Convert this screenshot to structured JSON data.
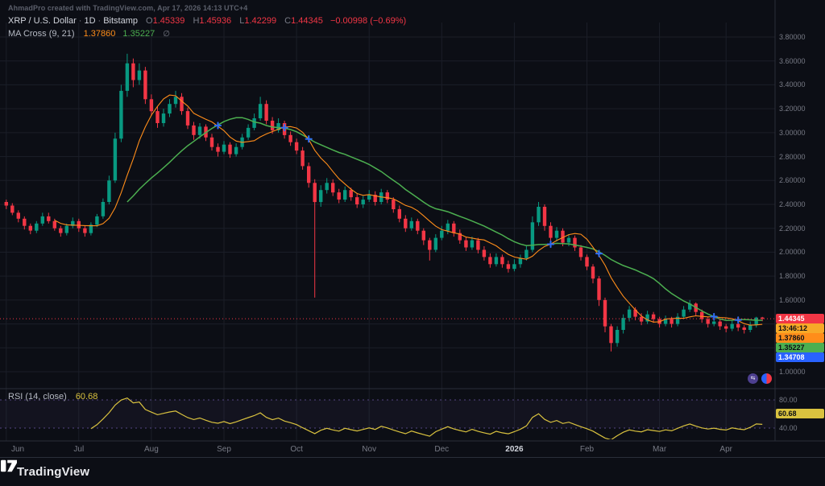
{
  "watermark": "AhmadPro created with TradingView.com, Apr 17, 2026 14:13 UTC+4",
  "legend": {
    "symbol": "XRP / U.S. Dollar",
    "separator": "·",
    "interval": "1D",
    "exchange": "Bitstamp",
    "ohlc": {
      "o_label": "O",
      "o": "1.45339",
      "h_label": "H",
      "h": "1.45936",
      "l_label": "L",
      "l": "1.42299",
      "c_label": "C",
      "c": "1.44345",
      "change": "−0.00998 (−0.69%)"
    },
    "ma": {
      "title": "MA Cross (9, 21)",
      "fast_value": "1.37860",
      "slow_value": "1.35227",
      "options_icon": "∅"
    },
    "rsi": {
      "title": "RSI (14, close)",
      "value": "60.68"
    }
  },
  "price_scale": {
    "ticks": [
      "3.80000",
      "3.60000",
      "3.40000",
      "3.20000",
      "3.00000",
      "2.80000",
      "2.60000",
      "2.40000",
      "2.20000",
      "2.00000",
      "1.80000",
      "1.60000",
      "1.40000",
      "1.20000",
      "1.00000"
    ],
    "badges": [
      {
        "name": "last-price-label",
        "text": "1.44345",
        "bg": "#f23645",
        "fg": "#ffffff"
      },
      {
        "name": "countdown-label",
        "text": "13:46:12",
        "bg": "#f7a928",
        "fg": "#0c0e15"
      },
      {
        "name": "ma-fast-label",
        "text": "1.37860",
        "bg": "#ff8d1a",
        "fg": "#0c0e15"
      },
      {
        "name": "ma-slow-label",
        "text": "1.35227",
        "bg": "#4caf50",
        "fg": "#0c0e15"
      },
      {
        "name": "cross-value-label",
        "text": "1.34708",
        "bg": "#2962ff",
        "fg": "#ffffff"
      }
    ]
  },
  "rsi_scale": {
    "ticks": [
      {
        "text": "80.00",
        "value": 80
      },
      {
        "text": "40.00",
        "value": 40
      }
    ],
    "badge": {
      "text": "60.68",
      "bg": "#d9c23f",
      "fg": "#0c0e15",
      "value": 60.68
    }
  },
  "time_scale": {
    "labels": [
      {
        "text": "Jun",
        "index": 0,
        "highlight": false
      },
      {
        "text": "Jul",
        "index": 12,
        "highlight": false
      },
      {
        "text": "Aug",
        "index": 24,
        "highlight": false
      },
      {
        "text": "Sep",
        "index": 36,
        "highlight": false
      },
      {
        "text": "Oct",
        "index": 48,
        "highlight": false
      },
      {
        "text": "Nov",
        "index": 60,
        "highlight": false
      },
      {
        "text": "Dec",
        "index": 72,
        "highlight": false
      },
      {
        "text": "2026",
        "index": 84,
        "highlight": true
      },
      {
        "text": "Feb",
        "index": 96,
        "highlight": false
      },
      {
        "text": "Mar",
        "index": 108,
        "highlight": false
      },
      {
        "text": "Apr",
        "index": 119,
        "highlight": false
      }
    ]
  },
  "footer": {
    "brand": "TradingView"
  },
  "colors": {
    "background": "#0c0e15",
    "up": "#089981",
    "down": "#f23645",
    "grid": "#1b1e28",
    "separator": "#2a2e39",
    "axis_text": "#787b86",
    "title_text": "#d1d4dc",
    "ma_fast": "#ff8d1a",
    "ma_slow": "#4caf50",
    "cross": "#2f6df6",
    "rsi": "#d9c23f",
    "rsi_level": "#67539f",
    "price_line": "#f23645"
  },
  "chart_data": {
    "type": "candlestick",
    "title": "XRP / U.S. Dollar · 1D · Bitstamp",
    "ylim": [
      1.0,
      3.8
    ],
    "price_step": 0.2,
    "last_price": 1.44345,
    "countdown": "13:46:12",
    "indicators": [
      {
        "type": "ma_cross",
        "fast_period": 9,
        "slow_period": 21,
        "fast_last": 1.3786,
        "slow_last": 1.35227,
        "cross_last": 1.34708
      },
      {
        "type": "rsi",
        "period": 14,
        "source": "close",
        "last": 60.68,
        "upper_level": 80,
        "lower_level": 40
      }
    ],
    "candles": [
      [
        2.42,
        2.44,
        2.36,
        2.39
      ],
      [
        2.39,
        2.41,
        2.31,
        2.33
      ],
      [
        2.33,
        2.35,
        2.25,
        2.28
      ],
      [
        2.28,
        2.3,
        2.19,
        2.22
      ],
      [
        2.22,
        2.24,
        2.15,
        2.18
      ],
      [
        2.18,
        2.26,
        2.16,
        2.24
      ],
      [
        2.24,
        2.33,
        2.22,
        2.3
      ],
      [
        2.3,
        2.33,
        2.24,
        2.26
      ],
      [
        2.26,
        2.28,
        2.18,
        2.2
      ],
      [
        2.2,
        2.22,
        2.13,
        2.16
      ],
      [
        2.16,
        2.24,
        2.14,
        2.22
      ],
      [
        2.22,
        2.29,
        2.2,
        2.26
      ],
      [
        2.26,
        2.28,
        2.17,
        2.2
      ],
      [
        2.2,
        2.22,
        2.13,
        2.16
      ],
      [
        2.16,
        2.25,
        2.14,
        2.23
      ],
      [
        2.23,
        2.32,
        2.21,
        2.3
      ],
      [
        2.3,
        2.45,
        2.28,
        2.42
      ],
      [
        2.42,
        2.64,
        2.4,
        2.6
      ],
      [
        2.6,
        3.0,
        2.58,
        2.95
      ],
      [
        2.95,
        3.4,
        2.92,
        3.35
      ],
      [
        3.35,
        3.66,
        3.3,
        3.58
      ],
      [
        3.58,
        3.62,
        3.38,
        3.44
      ],
      [
        3.44,
        3.58,
        3.4,
        3.52
      ],
      [
        3.52,
        3.55,
        3.24,
        3.28
      ],
      [
        3.28,
        3.32,
        3.14,
        3.18
      ],
      [
        3.18,
        3.22,
        3.04,
        3.08
      ],
      [
        3.08,
        3.2,
        3.05,
        3.16
      ],
      [
        3.16,
        3.28,
        3.13,
        3.24
      ],
      [
        3.24,
        3.35,
        3.21,
        3.3
      ],
      [
        3.3,
        3.33,
        3.15,
        3.18
      ],
      [
        3.18,
        3.21,
        3.03,
        3.06
      ],
      [
        3.06,
        3.09,
        2.94,
        2.98
      ],
      [
        2.98,
        3.08,
        2.95,
        3.05
      ],
      [
        3.05,
        3.07,
        2.93,
        2.96
      ],
      [
        2.96,
        2.99,
        2.85,
        2.88
      ],
      [
        2.88,
        2.91,
        2.8,
        2.84
      ],
      [
        2.84,
        2.93,
        2.82,
        2.9
      ],
      [
        2.9,
        2.92,
        2.79,
        2.82
      ],
      [
        2.82,
        2.91,
        2.8,
        2.88
      ],
      [
        2.88,
        2.99,
        2.86,
        2.96
      ],
      [
        2.96,
        3.07,
        2.94,
        3.04
      ],
      [
        3.04,
        3.16,
        3.02,
        3.12
      ],
      [
        3.12,
        3.3,
        3.1,
        3.24
      ],
      [
        3.24,
        3.27,
        3.07,
        3.1
      ],
      [
        3.1,
        3.13,
        2.99,
        3.02
      ],
      [
        3.02,
        3.12,
        3.0,
        3.08
      ],
      [
        3.08,
        3.1,
        2.95,
        2.98
      ],
      [
        2.98,
        3.01,
        2.89,
        2.92
      ],
      [
        2.92,
        2.95,
        2.82,
        2.85
      ],
      [
        2.85,
        2.88,
        2.69,
        2.72
      ],
      [
        2.72,
        2.75,
        2.54,
        2.58
      ],
      [
        2.58,
        2.61,
        1.62,
        2.42
      ],
      [
        2.42,
        2.56,
        2.38,
        2.52
      ],
      [
        2.52,
        2.62,
        2.49,
        2.58
      ],
      [
        2.58,
        2.61,
        2.47,
        2.5
      ],
      [
        2.5,
        2.53,
        2.41,
        2.44
      ],
      [
        2.44,
        2.55,
        2.42,
        2.52
      ],
      [
        2.52,
        2.54,
        2.43,
        2.46
      ],
      [
        2.46,
        2.49,
        2.37,
        2.4
      ],
      [
        2.4,
        2.47,
        2.37,
        2.44
      ],
      [
        2.44,
        2.52,
        2.42,
        2.48
      ],
      [
        2.48,
        2.51,
        2.39,
        2.42
      ],
      [
        2.42,
        2.53,
        2.4,
        2.5
      ],
      [
        2.5,
        2.52,
        2.41,
        2.44
      ],
      [
        2.44,
        2.46,
        2.33,
        2.36
      ],
      [
        2.36,
        2.39,
        2.25,
        2.28
      ],
      [
        2.28,
        2.31,
        2.17,
        2.2
      ],
      [
        2.2,
        2.29,
        2.18,
        2.26
      ],
      [
        2.26,
        2.28,
        2.15,
        2.18
      ],
      [
        2.18,
        2.2,
        2.06,
        2.1
      ],
      [
        2.1,
        2.12,
        1.93,
        2.02
      ],
      [
        2.02,
        2.15,
        2.0,
        2.12
      ],
      [
        2.12,
        2.22,
        2.1,
        2.18
      ],
      [
        2.18,
        2.27,
        2.15,
        2.24
      ],
      [
        2.24,
        2.26,
        2.13,
        2.16
      ],
      [
        2.16,
        2.19,
        2.07,
        2.1
      ],
      [
        2.1,
        2.13,
        2.01,
        2.04
      ],
      [
        2.04,
        2.13,
        2.02,
        2.1
      ],
      [
        2.1,
        2.12,
        1.99,
        2.02
      ],
      [
        2.02,
        2.05,
        1.93,
        1.96
      ],
      [
        1.96,
        1.99,
        1.87,
        1.9
      ],
      [
        1.9,
        1.99,
        1.88,
        1.96
      ],
      [
        1.96,
        1.98,
        1.87,
        1.9
      ],
      [
        1.9,
        1.93,
        1.83,
        1.86
      ],
      [
        1.86,
        1.94,
        1.84,
        1.9
      ],
      [
        1.9,
        1.98,
        1.87,
        1.95
      ],
      [
        1.95,
        2.06,
        1.93,
        2.02
      ],
      [
        2.02,
        2.3,
        2.0,
        2.25
      ],
      [
        2.25,
        2.42,
        2.22,
        2.38
      ],
      [
        2.38,
        2.4,
        2.18,
        2.22
      ],
      [
        2.22,
        2.25,
        2.08,
        2.12
      ],
      [
        2.12,
        2.21,
        2.09,
        2.18
      ],
      [
        2.18,
        2.2,
        2.05,
        2.08
      ],
      [
        2.08,
        2.15,
        2.05,
        2.12
      ],
      [
        2.12,
        2.14,
        2.01,
        2.04
      ],
      [
        2.04,
        2.06,
        1.93,
        1.96
      ],
      [
        1.96,
        1.98,
        1.85,
        1.88
      ],
      [
        1.88,
        1.9,
        1.74,
        1.78
      ],
      [
        1.78,
        1.8,
        1.55,
        1.6
      ],
      [
        1.6,
        1.62,
        1.33,
        1.38
      ],
      [
        1.38,
        1.4,
        1.17,
        1.24
      ],
      [
        1.24,
        1.38,
        1.21,
        1.35
      ],
      [
        1.35,
        1.48,
        1.32,
        1.45
      ],
      [
        1.45,
        1.55,
        1.42,
        1.52
      ],
      [
        1.52,
        1.54,
        1.43,
        1.46
      ],
      [
        1.46,
        1.49,
        1.39,
        1.42
      ],
      [
        1.42,
        1.51,
        1.4,
        1.48
      ],
      [
        1.48,
        1.5,
        1.41,
        1.44
      ],
      [
        1.44,
        1.46,
        1.37,
        1.4
      ],
      [
        1.4,
        1.47,
        1.38,
        1.44
      ],
      [
        1.44,
        1.46,
        1.37,
        1.4
      ],
      [
        1.4,
        1.49,
        1.38,
        1.46
      ],
      [
        1.46,
        1.55,
        1.44,
        1.52
      ],
      [
        1.52,
        1.6,
        1.5,
        1.57
      ],
      [
        1.57,
        1.58,
        1.47,
        1.5
      ],
      [
        1.5,
        1.52,
        1.41,
        1.44
      ],
      [
        1.44,
        1.46,
        1.37,
        1.4
      ],
      [
        1.4,
        1.45,
        1.38,
        1.42
      ],
      [
        1.42,
        1.44,
        1.35,
        1.38
      ],
      [
        1.38,
        1.4,
        1.33,
        1.36
      ],
      [
        1.36,
        1.43,
        1.34,
        1.4
      ],
      [
        1.4,
        1.42,
        1.34,
        1.37
      ],
      [
        1.37,
        1.39,
        1.32,
        1.35
      ],
      [
        1.35,
        1.42,
        1.33,
        1.39
      ],
      [
        1.39,
        1.46,
        1.37,
        1.453
      ],
      [
        1.45339,
        1.45936,
        1.42299,
        1.44345
      ]
    ]
  }
}
